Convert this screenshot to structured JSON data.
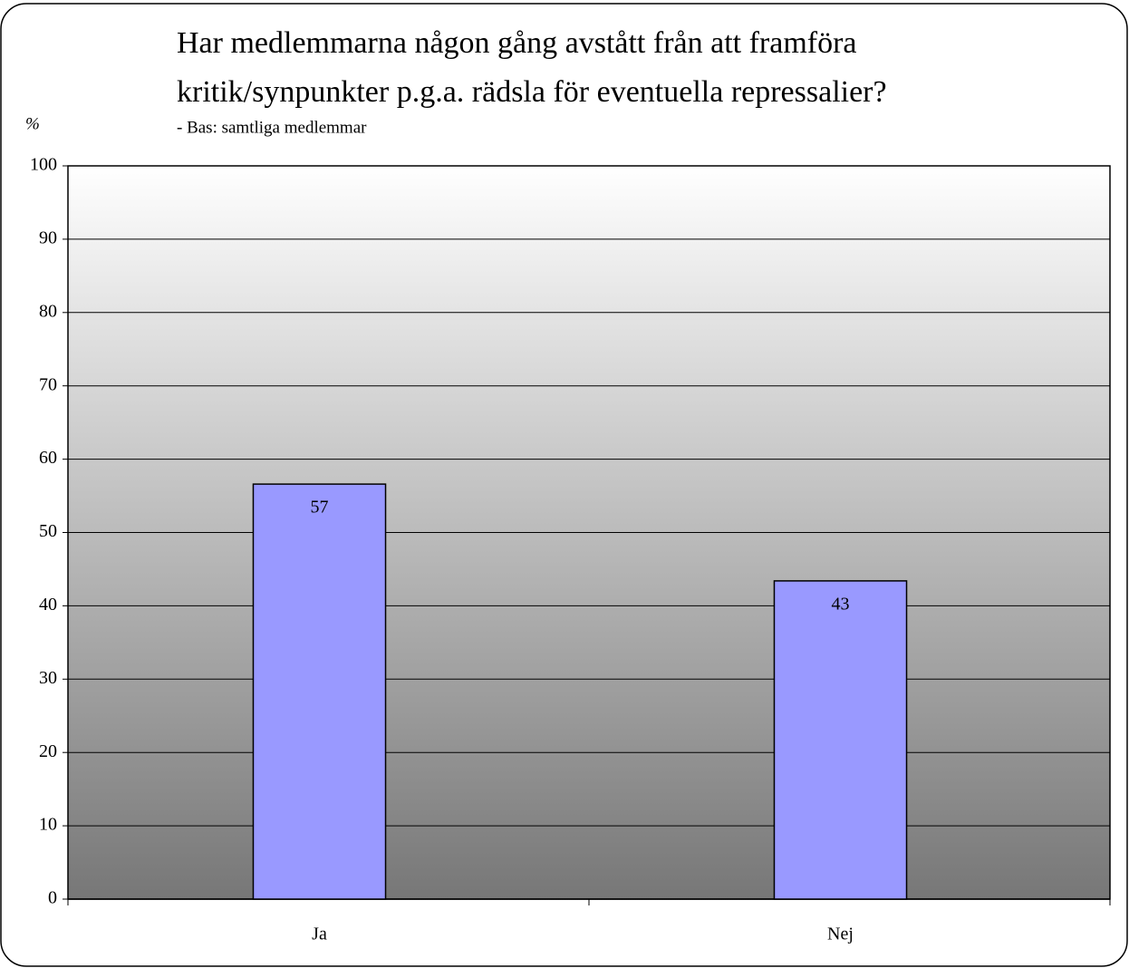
{
  "chart_data": {
    "type": "bar",
    "title": [
      "Har medlemmarna någon gång avstått från att framföra",
      "kritik/synpunkter p.g.a. rädsla för eventuella repressalier?"
    ],
    "subtitle": "- Bas: samtliga medlemmar",
    "y_label": "%",
    "categories": [
      "Ja",
      "Nej"
    ],
    "values": [
      56.6,
      43.4
    ],
    "value_labels": [
      "57",
      "43"
    ],
    "color": "#9999ff",
    "ylim": [
      0,
      100
    ],
    "yticks": [
      0,
      10,
      20,
      30,
      40,
      50,
      60,
      70,
      80,
      90,
      100
    ],
    "grid": true
  }
}
